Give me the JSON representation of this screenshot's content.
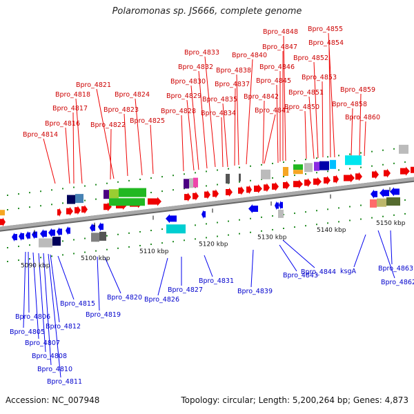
{
  "title": "Polaromonas sp. JS666, complete genome",
  "footer": {
    "accession": "Accession: NC_007948",
    "summary": "Topology: circular; Length: 5,200,264 bp; Genes: 4,873"
  },
  "colors": {
    "forward_gene": "#ee0000",
    "reverse_gene": "#0000ee",
    "backbone": "#a9a9a9",
    "tick": "#228b22"
  },
  "ticks": [
    "5090 kbp",
    "5100 kbp",
    "5110 kbp",
    "5120 kbp",
    "5130 kbp",
    "5140 kbp",
    "5150 kbp"
  ],
  "top_genes": [
    "Bpro_4814",
    "Bpro_4816",
    "Bpro_4817",
    "Bpro_4818",
    "Bpro_4821",
    "Bpro_4822",
    "Bpro_4823",
    "Bpro_4824",
    "Bpro_4825",
    "Bpro_4828",
    "Bpro_4829",
    "Bpro_4830",
    "Bpro_4832",
    "Bpro_4833",
    "Bpro_4834",
    "Bpro_4835",
    "Bpro_4837",
    "Bpro_4838",
    "Bpro_4840",
    "Bpro_4841",
    "Bpro_4842",
    "Bpro_4845",
    "Bpro_4846",
    "Bpro_4847",
    "Bpro_4848",
    "Bpro_4850",
    "Bpro_4851",
    "Bpro_4852",
    "Bpro_4853",
    "Bpro_4854",
    "Bpro_4855",
    "Bpro_4858",
    "Bpro_4859",
    "Bpro_4860"
  ],
  "bottom_genes": [
    "Bpro_4805",
    "Bpro_4806",
    "Bpro_4807",
    "Bpro_4808",
    "Bpro_4810",
    "Bpro_4811",
    "Bpro_4812",
    "Bpro_4815",
    "Bpro_4819",
    "Bpro_4820",
    "Bpro_4826",
    "Bpro_4827",
    "Bpro_4831",
    "Bpro_4839",
    "Bpro_4843",
    "Bpro_4844",
    "ksgA",
    "Bpro_4862",
    "Bpro_4863"
  ]
}
